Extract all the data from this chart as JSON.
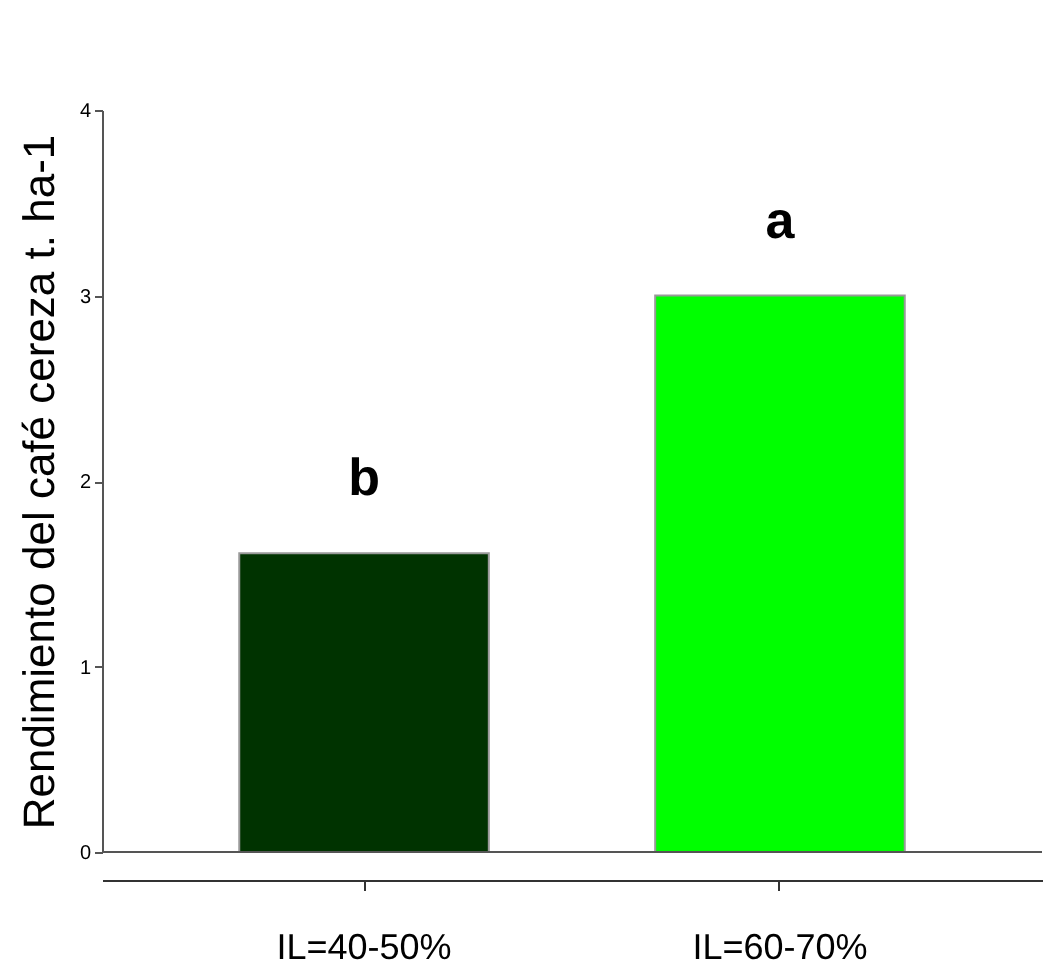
{
  "chart_data": {
    "type": "bar",
    "ylabel": "Rendimiento del café cereza t. ha-1",
    "categories": [
      "IL=40-50%",
      "IL=60-70%"
    ],
    "values": [
      1.61,
      3.0
    ],
    "colors": [
      "#003300",
      "#00ff00"
    ],
    "ylim": [
      0,
      4
    ],
    "yticks": [
      0,
      1,
      2,
      3,
      4
    ],
    "grid": false,
    "annotations": [
      "b",
      "a"
    ]
  }
}
